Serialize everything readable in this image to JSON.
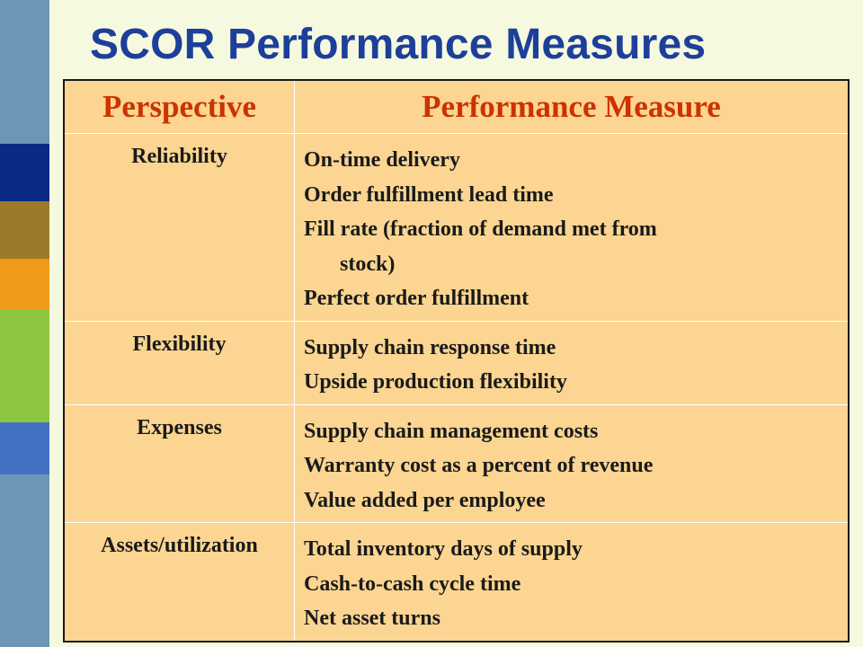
{
  "slide": {
    "title": "SCOR Performance Measures",
    "colors": {
      "title": "#1d3f9a",
      "header_text": "#cc3300",
      "table_fill": "#fbd591",
      "background": "#f5f9df"
    }
  },
  "table": {
    "headers": [
      "Perspective",
      "Performance Measure"
    ],
    "rows": [
      {
        "perspective": "Reliability",
        "measures": [
          "On-time delivery",
          "Order fulfillment lead time",
          "Fill rate (fraction of demand met from",
          "stock)",
          "Perfect order fulfillment"
        ]
      },
      {
        "perspective": "Flexibility",
        "measures": [
          "Supply chain response time",
          "Upside production flexibility"
        ]
      },
      {
        "perspective": "Expenses",
        "measures": [
          "Supply chain management costs",
          "Warranty cost as a percent of revenue",
          "Value added per employee"
        ]
      },
      {
        "perspective": "Assets/utilization",
        "measures": [
          "Total inventory days of supply",
          "Cash-to-cash cycle time",
          "Net asset turns"
        ]
      }
    ]
  }
}
